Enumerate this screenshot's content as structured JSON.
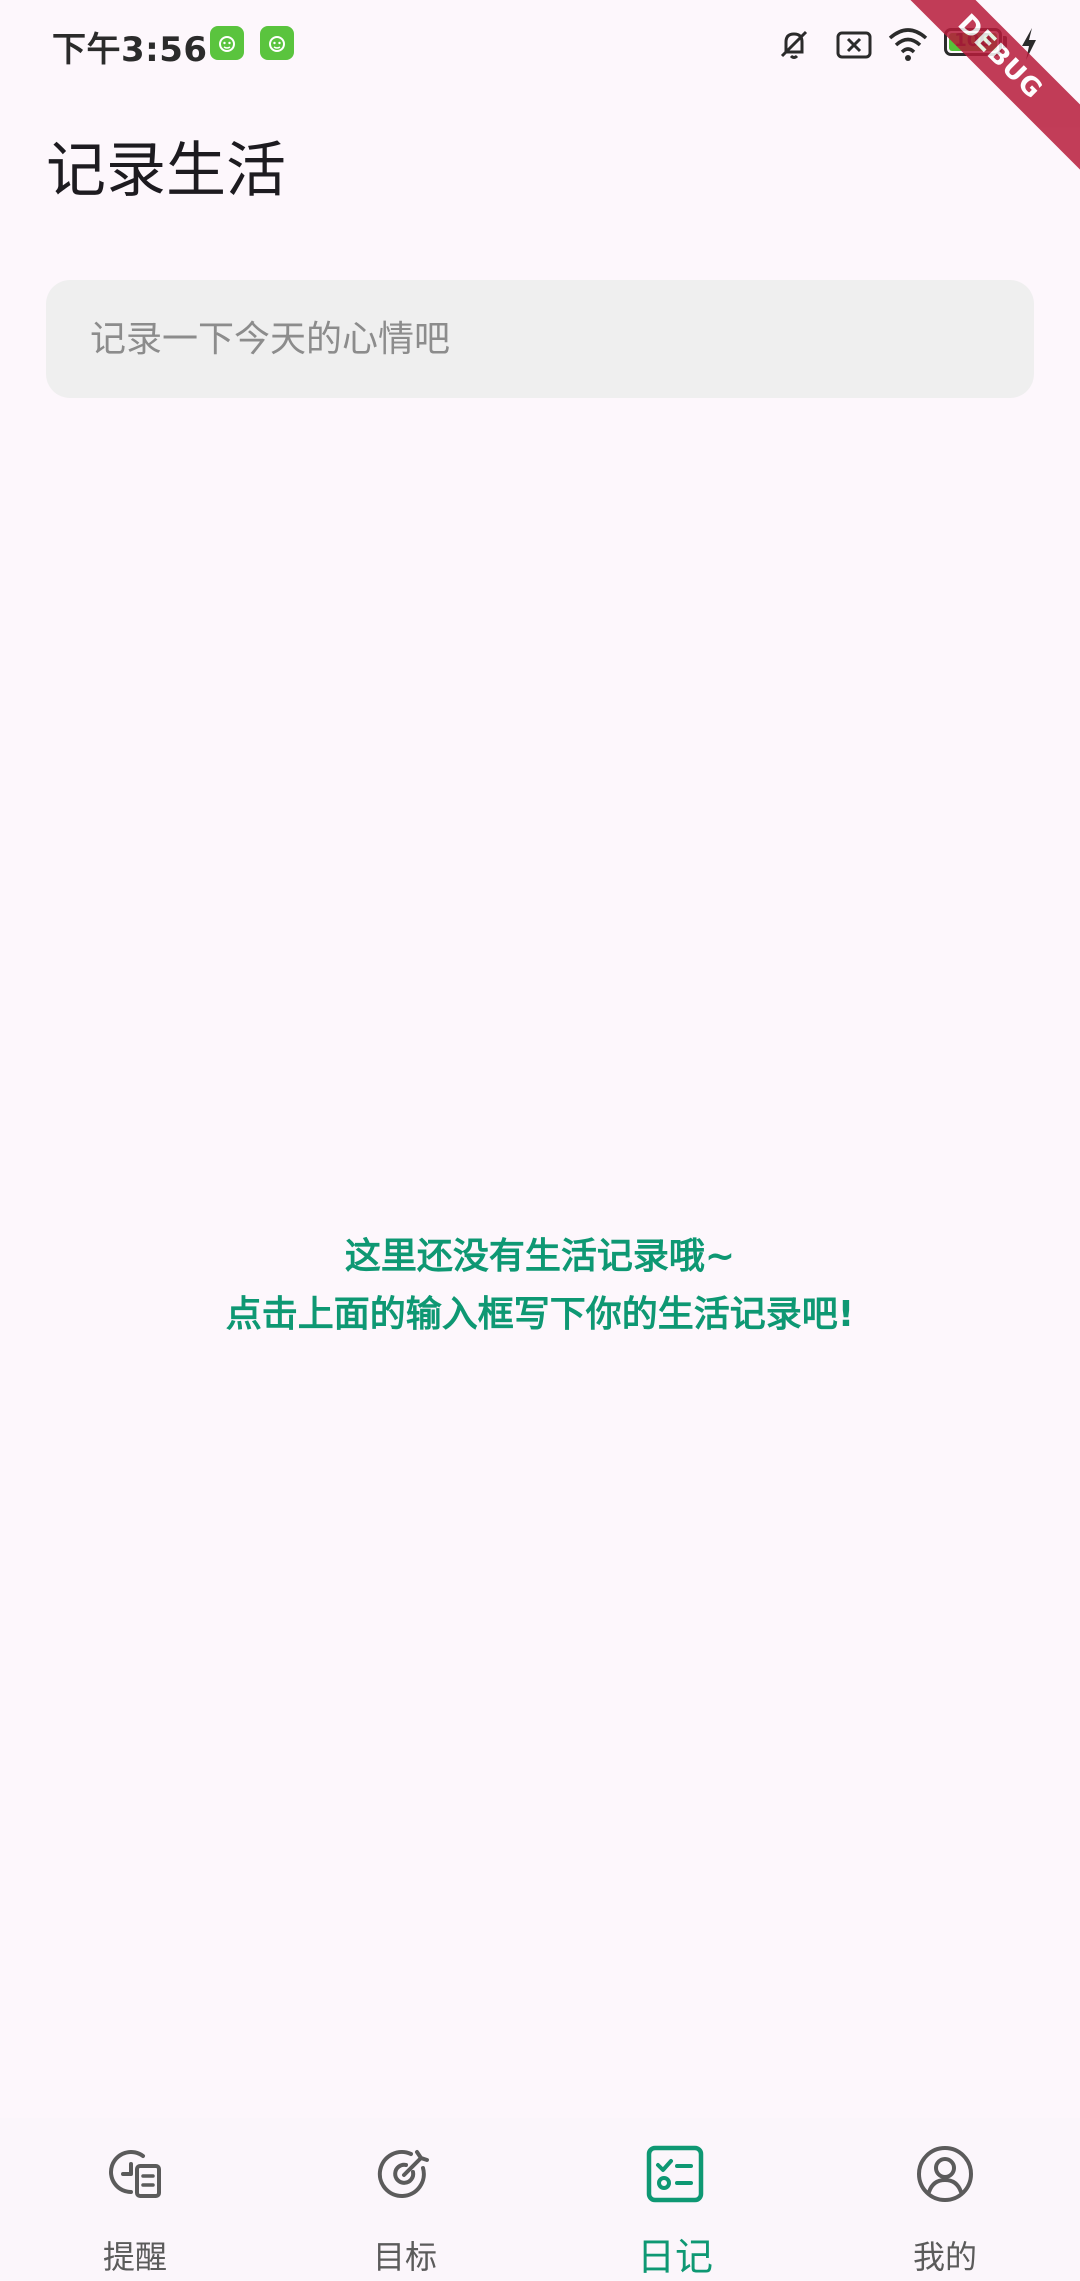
{
  "status_bar": {
    "time": "下午3:56",
    "battery_level": "100",
    "battery_fraction": 1.0,
    "icons": [
      "app-notification-icon",
      "app-notification-icon",
      "mute-icon",
      "no-sim-icon",
      "wifi-icon",
      "battery-icon",
      "charging-icon"
    ]
  },
  "debug_banner": "DEBUG",
  "header": {
    "title": "记录生活"
  },
  "input": {
    "placeholder": "记录一下今天的心情吧",
    "value": ""
  },
  "empty_state": {
    "line1": "这里还没有生活记录哦~",
    "line2": "点击上面的输入框写下你的生活记录吧!"
  },
  "bottom_nav": {
    "items": [
      {
        "label": "提醒",
        "icon": "reminder-icon",
        "active": false
      },
      {
        "label": "目标",
        "icon": "target-icon",
        "active": false
      },
      {
        "label": "日记",
        "icon": "checklist-icon",
        "active": true
      },
      {
        "label": "我的",
        "icon": "profile-icon",
        "active": false
      }
    ]
  },
  "colors": {
    "background": "#fdf7fc",
    "accent": "#0e9873",
    "input_bg": "#efefef",
    "inactive": "#5b5b5b",
    "debug_ribbon": "#b71c3b",
    "app_badge": "#5ac43e"
  }
}
